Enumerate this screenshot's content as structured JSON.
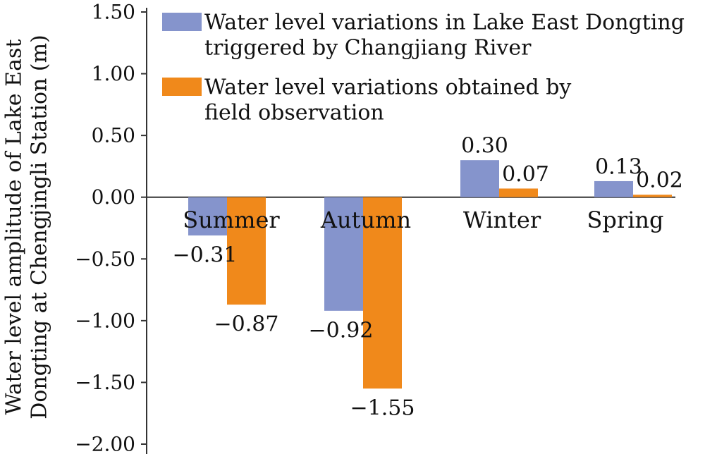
{
  "chart_data": {
    "type": "bar",
    "title": "",
    "xlabel": "",
    "ylabel_lines": [
      "Water level amplitude of Lake East",
      "Dongting at Chengjingli Station (m)"
    ],
    "ylim": [
      -2.0,
      1.5
    ],
    "yticks": [
      "1.50",
      "1.00",
      "0.50",
      "0.00",
      "−0.50",
      "−1.00",
      "−1.50",
      "−2.00"
    ],
    "ytick_values": [
      1.5,
      1.0,
      0.5,
      0.0,
      -0.5,
      -1.0,
      -1.5,
      -2.0
    ],
    "categories": [
      "Summer",
      "Autumn",
      "Winter",
      "Spring"
    ],
    "series": [
      {
        "name_lines": [
          "Water level variations in Lake East Dongting",
          "triggered by Changjiang River"
        ],
        "color": "#8594cc",
        "values": [
          -0.31,
          -0.92,
          0.3,
          0.13
        ],
        "labels": [
          "−0.31",
          "−0.92",
          "0.30",
          "0.13"
        ]
      },
      {
        "name_lines": [
          "Water level variations obtained by",
          "field observation"
        ],
        "color": "#f0891b",
        "values": [
          -0.87,
          -1.55,
          0.07,
          0.02
        ],
        "labels": [
          "−0.87",
          "−1.55",
          "0.07",
          "0.02"
        ]
      }
    ],
    "legend_position": "top-right",
    "grid": false
  }
}
